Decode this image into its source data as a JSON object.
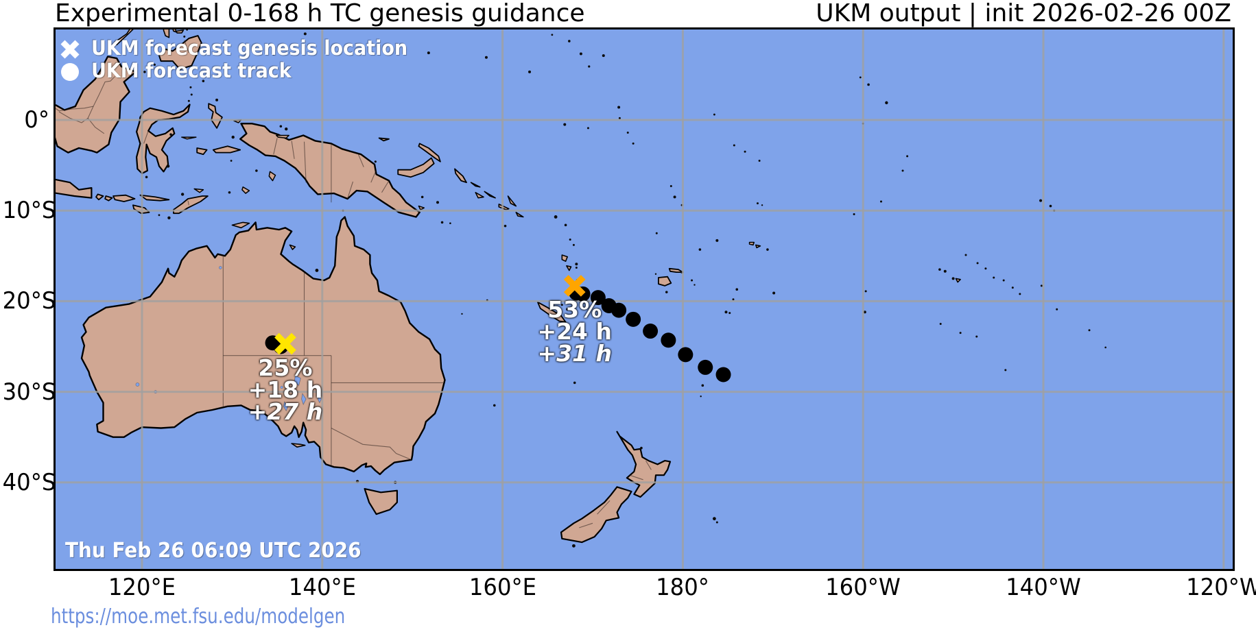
{
  "title_left": "Experimental 0-168 h TC genesis guidance",
  "title_right": "UKM output | init 2026-02-26 00Z",
  "legend": {
    "genesis_label": "UKM forecast genesis location",
    "track_label": "UKM forecast track"
  },
  "map_footer_timestamp": "Thu Feb 26 06:09 UTC 2026",
  "footer_url": "https://moe.met.fsu.edu/modelgen",
  "axes": {
    "lat_ticks": [
      {
        "label": "0°",
        "deg": 0
      },
      {
        "label": "10°S",
        "deg": -10
      },
      {
        "label": "20°S",
        "deg": -20
      },
      {
        "label": "30°S",
        "deg": -30
      },
      {
        "label": "40°S",
        "deg": -40
      }
    ],
    "lon_ticks": [
      {
        "label": "120°E",
        "deg": 120
      },
      {
        "label": "140°E",
        "deg": 140
      },
      {
        "label": "160°E",
        "deg": 160
      },
      {
        "label": "180°",
        "deg": 180
      },
      {
        "label": "160°W",
        "deg": 200
      },
      {
        "label": "140°W",
        "deg": 220
      },
      {
        "label": "120°W",
        "deg": 240
      }
    ]
  },
  "colors": {
    "ocean": "#7fa3ea",
    "land": "#d0a793",
    "coastline": "#000000",
    "grid": "#a0a0a0",
    "track_dot": "#000000",
    "genesis_marker_1": "#ffe600",
    "genesis_marker_2": "#ffa500",
    "legend_marker": "#ffffff",
    "url_link": "#6b8ede"
  },
  "chart_data": {
    "type": "map-tracks",
    "model": "UKM",
    "init_time": "2026-02-26 00Z",
    "valid_window_hours": "0-168",
    "lat_range_deg": [
      10.2,
      -49.8
    ],
    "lon_range_deg_east": [
      110.2,
      238.9
    ],
    "grid": "on",
    "genesis_events": [
      {
        "probability": "25%",
        "genesis_hour": "+18 h",
        "track_end_hour": "+27 h",
        "marker": "x",
        "marker_color": "#ffe600",
        "lon_east": 135.9,
        "lat": -24.7,
        "track_lon_east": [
          134.5,
          135.4
        ],
        "track_lat": [
          -24.6,
          -25.0
        ]
      },
      {
        "probability": "53%",
        "genesis_hour": "+24 h",
        "track_end_hour": "+31 h",
        "marker": "x",
        "marker_color": "#ffa500",
        "lon_east": 168.0,
        "lat": -18.3,
        "track_lon_east": [
          168.2,
          168.9,
          170.6,
          171.8,
          172.9,
          174.5,
          176.4,
          178.4,
          180.3,
          182.5,
          184.5
        ],
        "track_lat": [
          -19.1,
          -19.2,
          -19.6,
          -20.5,
          -21.0,
          -22.0,
          -23.3,
          -24.3,
          -25.9,
          -27.3,
          -28.1
        ]
      }
    ]
  }
}
